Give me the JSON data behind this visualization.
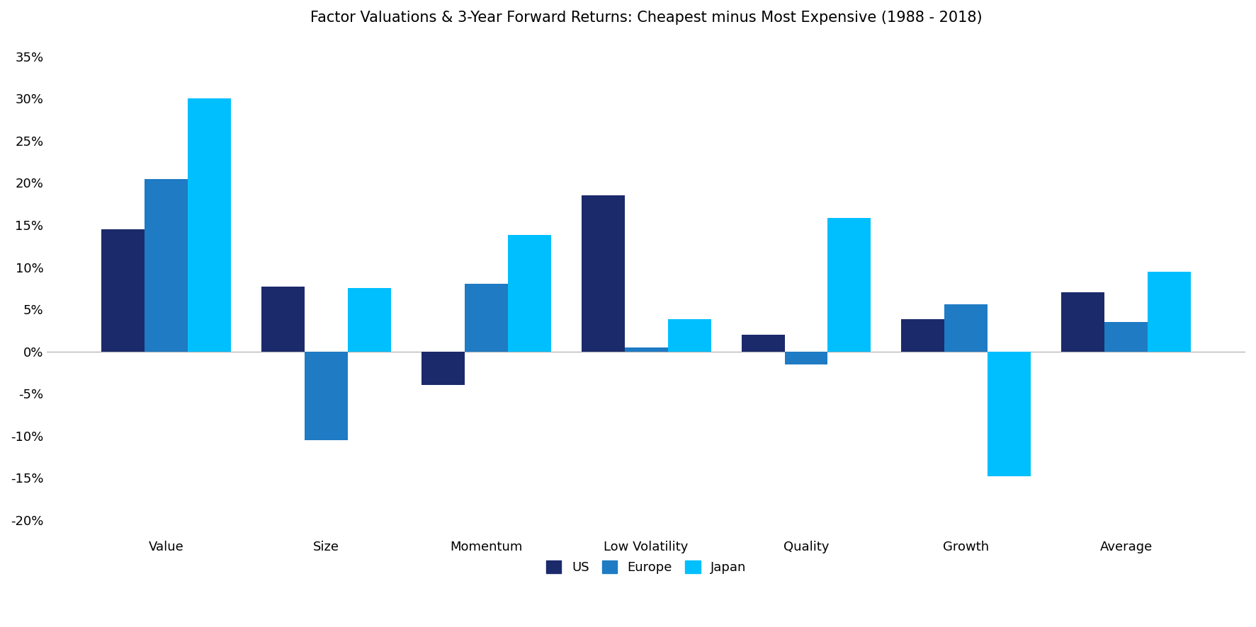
{
  "title": "Factor Valuations & 3-Year Forward Returns: Cheapest minus Most Expensive (1988 - 2018)",
  "categories": [
    "Value",
    "Size",
    "Momentum",
    "Low Volatility",
    "Quality",
    "Growth",
    "Average"
  ],
  "series": {
    "US": [
      0.145,
      0.077,
      -0.04,
      0.185,
      0.02,
      0.038,
      0.07
    ],
    "Europe": [
      0.205,
      -0.105,
      0.08,
      0.005,
      -0.015,
      0.056,
      0.035
    ],
    "Japan": [
      0.3,
      0.075,
      0.138,
      0.038,
      0.158,
      -0.148,
      0.095
    ]
  },
  "colors": {
    "US": "#1b2a6b",
    "Europe": "#1e7bc4",
    "Japan": "#00bfff"
  },
  "ylim": [
    -0.22,
    0.37
  ],
  "yticks": [
    -0.2,
    -0.15,
    -0.1,
    -0.05,
    0.0,
    0.05,
    0.1,
    0.15,
    0.2,
    0.25,
    0.3,
    0.35
  ],
  "legend_labels": [
    "US",
    "Europe",
    "Japan"
  ],
  "bar_width": 0.27,
  "background_color": "#ffffff",
  "title_fontsize": 15,
  "tick_fontsize": 13,
  "legend_fontsize": 13
}
